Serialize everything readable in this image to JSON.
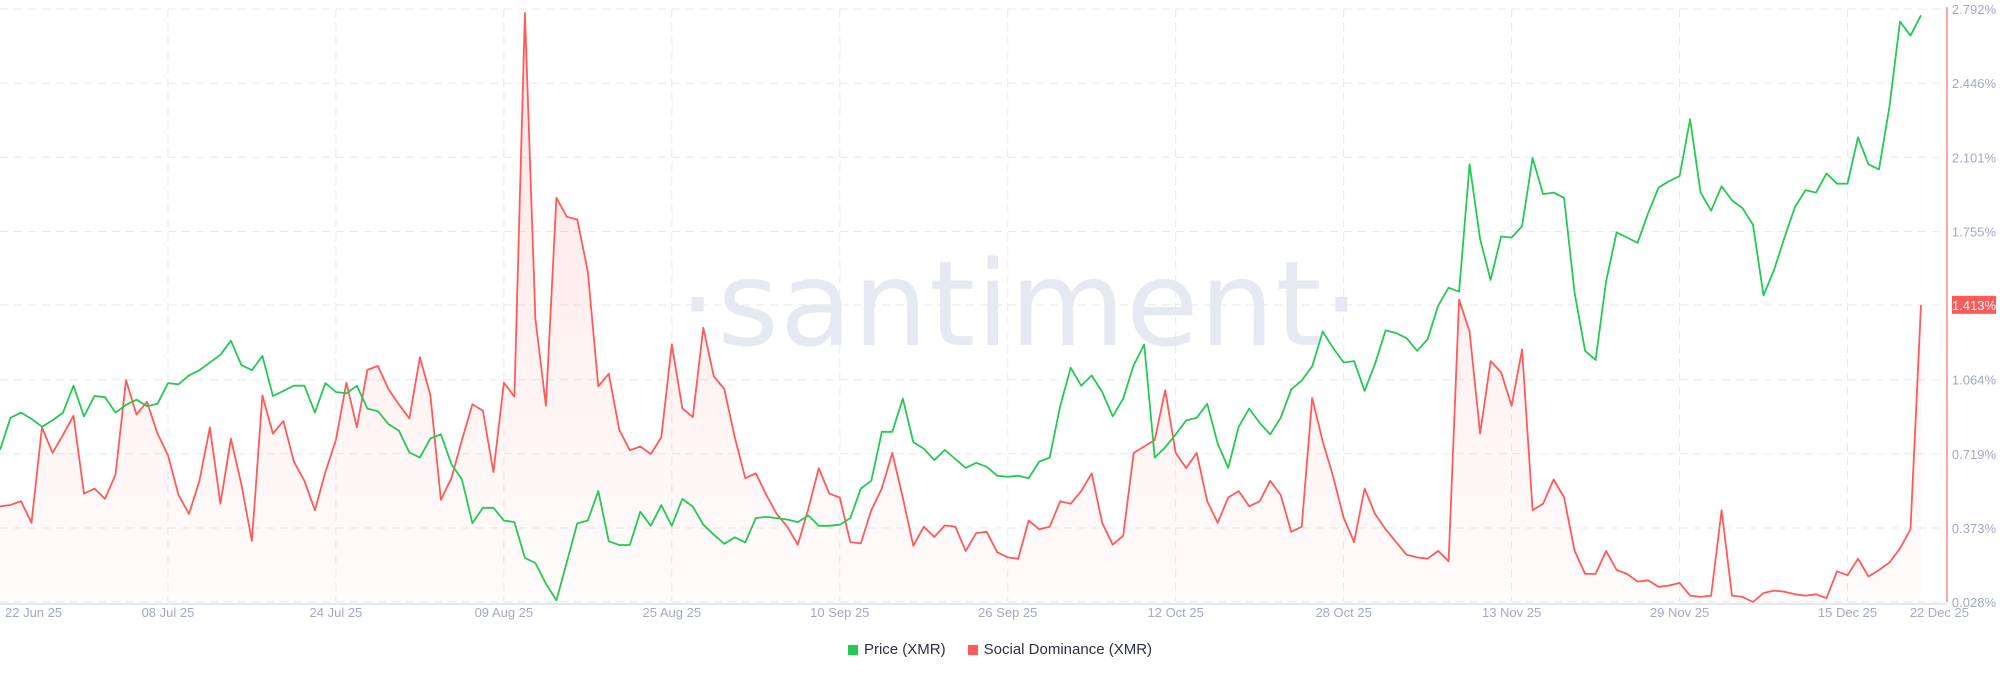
{
  "watermark": "·santiment·",
  "chart_data": {
    "type": "line",
    "x_range": [
      "2025-06-22",
      "2025-12-22"
    ],
    "x_frequency": "daily",
    "x_tick_labels": [
      "22 Jun 25",
      "08 Jul 25",
      "24 Jul 25",
      "09 Aug 25",
      "25 Aug 25",
      "10 Sep 25",
      "26 Sep 25",
      "12 Oct 25",
      "28 Oct 25",
      "13 Nov 25",
      "29 Nov 25",
      "15 Dec 25",
      "22 Dec 25"
    ],
    "y_axis_right": {
      "ticks": [
        "2.792%",
        "2.446%",
        "2.101%",
        "1.755%",
        "1.413%",
        "1.064%",
        "0.719%",
        "0.373%",
        "0.028%"
      ],
      "range": [
        0.028,
        2.792
      ],
      "highlighted_value": "1.413%"
    },
    "grid": true,
    "legend_position": "bottom",
    "series": [
      {
        "name": "Price (XMR)",
        "color": "#26c953",
        "axis": "hidden",
        "range": [
          235,
          442
        ],
        "values": [
          288.1,
          299.3,
          301.1,
          298.9,
          296.2,
          298.4,
          301.1,
          310.5,
          299.8,
          306.9,
          306.5,
          301.1,
          303.8,
          305.6,
          303.4,
          304.2,
          311.4,
          311.0,
          314.1,
          315.9,
          318.6,
          321.3,
          326.2,
          317.7,
          315.9,
          320.9,
          306.9,
          308.7,
          310.5,
          310.5,
          301.1,
          311.4,
          308.3,
          307.8,
          310.5,
          302.5,
          301.6,
          297.1,
          294.8,
          287.2,
          285.4,
          292.1,
          293.5,
          283.1,
          277.8,
          262.5,
          267.9,
          267.9,
          263.4,
          262.9,
          250.4,
          248.6,
          241.4,
          235.6,
          249.0,
          262.5,
          263.4,
          273.7,
          256.2,
          254.9,
          254.9,
          266.5,
          261.6,
          268.8,
          261.6,
          271.0,
          268.3,
          262.0,
          258.5,
          255.3,
          257.6,
          255.8,
          264.3,
          264.7,
          264.3,
          263.8,
          262.9,
          265.2,
          261.6,
          261.6,
          262.0,
          264.3,
          274.6,
          277.3,
          294.4,
          294.4,
          306.0,
          290.8,
          288.5,
          284.5,
          288.1,
          284.9,
          281.8,
          283.6,
          282.2,
          279.1,
          278.7,
          279.1,
          278.2,
          284.0,
          285.4,
          303.4,
          316.8,
          310.5,
          314.1,
          308.3,
          299.8,
          306.0,
          317.7,
          324.9,
          285.4,
          289.0,
          293.5,
          298.4,
          299.3,
          304.2,
          290.3,
          281.8,
          296.2,
          302.5,
          297.5,
          293.5,
          299.3,
          309.2,
          312.3,
          317.3,
          329.4,
          323.6,
          318.6,
          319.1,
          308.7,
          318.2,
          329.8,
          328.9,
          327.1,
          322.7,
          326.7,
          338.4,
          344.7,
          343.3,
          387.8,
          361.7,
          347.4,
          362.6,
          362.2,
          366.2,
          390.0,
          377.4,
          377.9,
          376.1,
          342.9,
          322.7,
          319.5,
          346.9,
          364.0,
          362.2,
          360.4,
          370.7,
          379.7,
          381.9,
          383.7,
          403.5,
          377.9,
          371.6,
          380.1,
          375.2,
          372.5,
          366.7,
          342.0,
          350.9,
          362.2,
          372.9,
          378.8,
          377.9,
          384.6,
          381.0,
          381.0,
          397.2,
          387.8,
          386.0,
          408.0,
          437.6,
          432.7,
          439.8
        ]
      },
      {
        "name": "Social Dominance (XMR)",
        "color": "#ff5b5b",
        "axis": "right",
        "unit": "%",
        "values": [
          0.474,
          0.48,
          0.498,
          0.397,
          0.842,
          0.723,
          0.807,
          0.896,
          0.533,
          0.557,
          0.509,
          0.622,
          1.062,
          0.902,
          0.961,
          0.813,
          0.712,
          0.527,
          0.438,
          0.593,
          0.842,
          0.486,
          0.789,
          0.575,
          0.313,
          0.991,
          0.813,
          0.872,
          0.682,
          0.593,
          0.456,
          0.634,
          0.783,
          1.05,
          0.842,
          1.11,
          1.128,
          1.021,
          0.949,
          0.884,
          1.169,
          0.991,
          0.504,
          0.605,
          0.783,
          0.949,
          0.92,
          0.634,
          1.05,
          0.985,
          2.774,
          1.348,
          0.943,
          1.912,
          1.823,
          1.811,
          1.568,
          1.033,
          1.092,
          0.83,
          0.735,
          0.753,
          0.718,
          0.795,
          1.229,
          0.931,
          0.89,
          1.306,
          1.08,
          1.021,
          0.795,
          0.605,
          0.628,
          0.527,
          0.438,
          0.379,
          0.295,
          0.462,
          0.652,
          0.533,
          0.515,
          0.307,
          0.301,
          0.456,
          0.557,
          0.723,
          0.515,
          0.29,
          0.379,
          0.331,
          0.385,
          0.379,
          0.266,
          0.349,
          0.355,
          0.26,
          0.236,
          0.23,
          0.408,
          0.367,
          0.379,
          0.498,
          0.486,
          0.545,
          0.628,
          0.397,
          0.295,
          0.337,
          0.723,
          0.753,
          0.783,
          1.015,
          0.723,
          0.652,
          0.723,
          0.498,
          0.397,
          0.515,
          0.545,
          0.474,
          0.498,
          0.593,
          0.527,
          0.355,
          0.379,
          0.979,
          0.777,
          0.611,
          0.42,
          0.307,
          0.557,
          0.438,
          0.367,
          0.307,
          0.248,
          0.236,
          0.23,
          0.266,
          0.218,
          1.437,
          1.288,
          0.813,
          1.151,
          1.098,
          0.943,
          1.205,
          0.456,
          0.486,
          0.599,
          0.515,
          0.266,
          0.159,
          0.159,
          0.266,
          0.177,
          0.159,
          0.123,
          0.129,
          0.099,
          0.105,
          0.117,
          0.058,
          0.052,
          0.058,
          0.456,
          0.058,
          0.052,
          0.028,
          0.07,
          0.081,
          0.076,
          0.064,
          0.058,
          0.064,
          0.046,
          0.171,
          0.153,
          0.23,
          0.147,
          0.177,
          0.212,
          0.278,
          0.367,
          1.413
        ]
      }
    ]
  },
  "legend": {
    "items": [
      {
        "label": "Price (XMR)",
        "color": "#26c953"
      },
      {
        "label": "Social Dominance (XMR)",
        "color": "#ff5b5b"
      }
    ]
  }
}
